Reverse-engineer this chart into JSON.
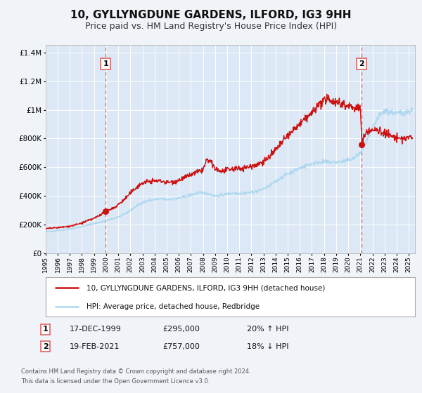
{
  "title": "10, GYLLYNGDUNE GARDENS, ILFORD, IG3 9HH",
  "subtitle": "Price paid vs. HM Land Registry's House Price Index (HPI)",
  "title_fontsize": 11,
  "subtitle_fontsize": 9,
  "sale1_x": 1999.96,
  "sale1_price": 295000,
  "sale2_x": 2021.12,
  "sale2_price": 757000,
  "legend_line1": "10, GYLLYNGDUNE GARDENS, ILFORD, IG3 9HH (detached house)",
  "legend_line2": "HPI: Average price, detached house, Redbridge",
  "footer1": "Contains HM Land Registry data © Crown copyright and database right 2024.",
  "footer2": "This data is licensed under the Open Government Licence v3.0.",
  "hpi_color": "#add8f0",
  "price_color": "#cc1111",
  "dashed_color": "#dd6666",
  "background_color": "#f0f4f8",
  "plot_bg": "#dce8f5",
  "grid_color": "#ffffff",
  "xmin": 1995.0,
  "xmax": 2025.5,
  "ymin": 0,
  "ymax": 1450000,
  "annot_date1": "17-DEC-1999",
  "annot_price1": "£295,000",
  "annot_pct1": "20% ↑ HPI",
  "annot_date2": "19-FEB-2021",
  "annot_price2": "£757,000",
  "annot_pct2": "18% ↓ HPI"
}
